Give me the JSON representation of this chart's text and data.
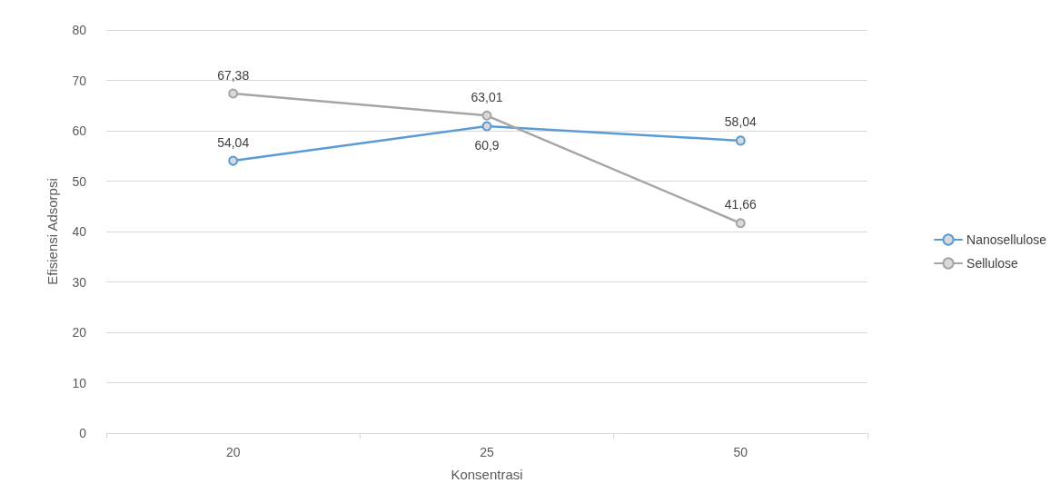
{
  "chart_data": {
    "type": "line",
    "xlabel": "Konsentrasi",
    "ylabel": "Efisiensi Adsorpsi",
    "categories": [
      "20",
      "25",
      "50"
    ],
    "series": [
      {
        "name": "Nanosellulose",
        "color": "#5b9bd5",
        "values": [
          54.04,
          60.9,
          58.04
        ],
        "value_labels": [
          "54,04",
          "60,9",
          "58,04"
        ]
      },
      {
        "name": "Sellulose",
        "color": "#a5a5a5",
        "values": [
          67.38,
          63.01,
          41.66
        ],
        "value_labels": [
          "67,38",
          "63,01",
          "41,66"
        ]
      }
    ],
    "ylim": [
      0,
      80
    ],
    "yticks": [
      0,
      10,
      20,
      30,
      40,
      50,
      60,
      70,
      80
    ],
    "grid": "y",
    "legend": "right",
    "marker": "circle",
    "line_style": "solid"
  }
}
